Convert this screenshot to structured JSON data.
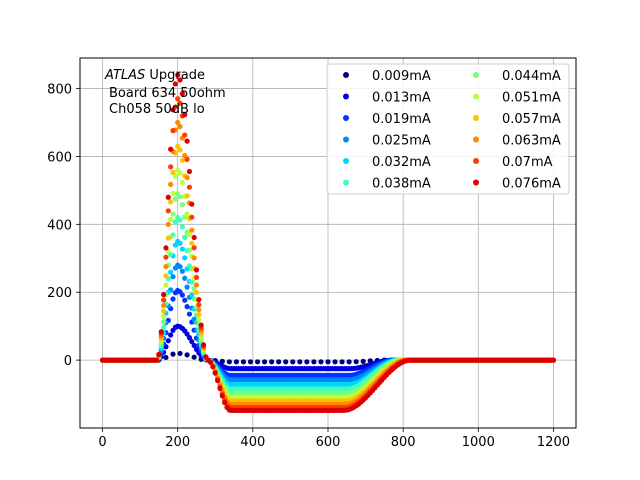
{
  "chart_data": {
    "type": "scatter",
    "xlim": [
      -60,
      1260
    ],
    "ylim": [
      -200,
      890
    ],
    "x_ticks": [
      0,
      200,
      400,
      600,
      800,
      1000,
      1200
    ],
    "y_ticks": [
      0,
      200,
      400,
      600,
      800
    ],
    "grid": true,
    "legend_position": "top-right",
    "legend_columns": 2,
    "annotation": {
      "atlas": "ATLAS",
      "upgrade": " Upgrade",
      "line2": "Board 634 50ohm",
      "line3": "Ch058 50dB lo"
    },
    "pulse_shape": {
      "x_start": 0,
      "x_end": 1200,
      "x_step": 6.25,
      "rise_start": 145,
      "peak_x": 200,
      "zero_cross_x": 280
    },
    "series": [
      {
        "name": "0.009mA",
        "peak": 20,
        "undershoot": -5,
        "recovery_start": 660,
        "recovery_end": 760,
        "color": "#00007f"
      },
      {
        "name": "0.013mA",
        "peak": 100,
        "undershoot": -25,
        "recovery_start": 660,
        "recovery_end": 770,
        "color": "#0000dd"
      },
      {
        "name": "0.019mA",
        "peak": 205,
        "undershoot": -45,
        "recovery_start": 655,
        "recovery_end": 775,
        "color": "#0035ff"
      },
      {
        "name": "0.025mA",
        "peak": 280,
        "undershoot": -58,
        "recovery_start": 655,
        "recovery_end": 780,
        "color": "#0088ff"
      },
      {
        "name": "0.032mA",
        "peak": 350,
        "undershoot": -72,
        "recovery_start": 655,
        "recovery_end": 785,
        "color": "#00d4ff"
      },
      {
        "name": "0.038mA",
        "peak": 420,
        "undershoot": -85,
        "recovery_start": 650,
        "recovery_end": 790,
        "color": "#3dffba"
      },
      {
        "name": "0.044mA",
        "peak": 490,
        "undershoot": -98,
        "recovery_start": 650,
        "recovery_end": 795,
        "color": "#7cff79"
      },
      {
        "name": "0.051mA",
        "peak": 560,
        "undershoot": -110,
        "recovery_start": 650,
        "recovery_end": 800,
        "color": "#b9ff3c"
      },
      {
        "name": "0.057mA",
        "peak": 630,
        "undershoot": -120,
        "recovery_start": 648,
        "recovery_end": 805,
        "color": "#ffc400"
      },
      {
        "name": "0.063mA",
        "peak": 700,
        "undershoot": -130,
        "recovery_start": 646,
        "recovery_end": 810,
        "color": "#ff8900"
      },
      {
        "name": "0.07mA",
        "peak": 770,
        "undershoot": -140,
        "recovery_start": 644,
        "recovery_end": 815,
        "color": "#ff3b00"
      },
      {
        "name": "0.076mA",
        "peak": 840,
        "undershoot": -148,
        "recovery_start": 642,
        "recovery_end": 820,
        "color": "#dd0000"
      }
    ]
  }
}
